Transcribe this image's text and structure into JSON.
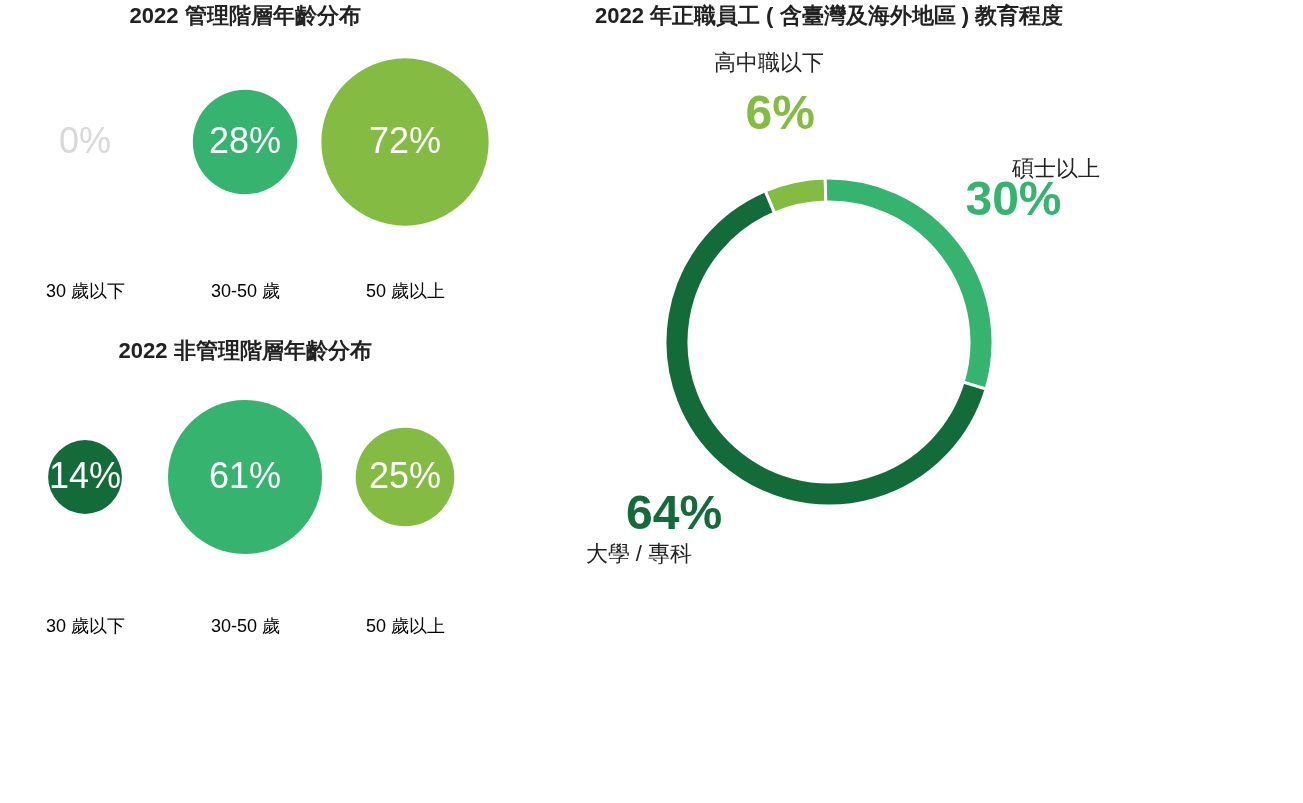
{
  "chart_data": [
    {
      "type": "other",
      "title": "2022 管理階層年齡分布",
      "categories": [
        "30 歲以下",
        "30-50 歲",
        "50 歲以上"
      ],
      "values": [
        0,
        28,
        72
      ],
      "value_labels": [
        "0%",
        "28%",
        "72%"
      ],
      "colors": [
        "#d9d9d9",
        "#35b36f",
        "#84bb42"
      ]
    },
    {
      "type": "other",
      "title": "2022 非管理階層年齡分布",
      "categories": [
        "30 歲以下",
        "30-50 歲",
        "50 歲以上"
      ],
      "values": [
        14,
        61,
        25
      ],
      "value_labels": [
        "14%",
        "61%",
        "25%"
      ],
      "colors": [
        "#146b3a",
        "#35b36f",
        "#84bb42"
      ]
    },
    {
      "type": "donut",
      "title": "2022 年正職員工 ( 含臺灣及海外地區 ) 教育程度",
      "categories": [
        "高中職以下",
        "碩士以上",
        "大學 / 專科"
      ],
      "values": [
        6,
        30,
        64
      ],
      "value_labels": [
        "6%",
        "30%",
        "64%"
      ],
      "colors": [
        "#84bb42",
        "#35b36f",
        "#146b3a"
      ]
    }
  ]
}
